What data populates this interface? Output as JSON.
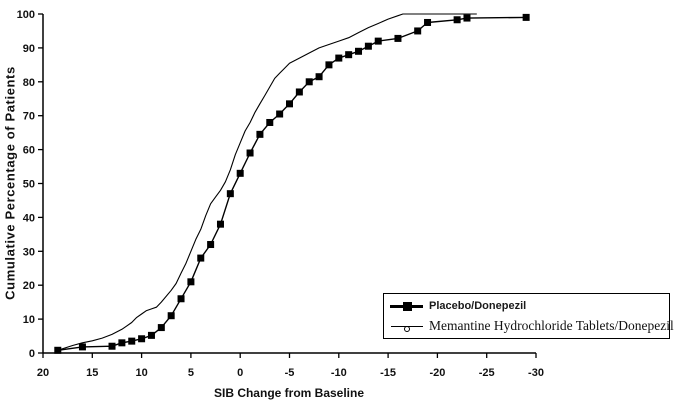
{
  "colors": {
    "background": "#ffffff",
    "line": "#000000",
    "text": "#111111",
    "legend_border": "#000000"
  },
  "legend": {
    "entries": [
      "Placebo/Donepezil",
      "Memantine Hydrochloride Tablets/Donepezil"
    ],
    "position": "inside-bottom-right"
  },
  "chart_data": {
    "type": "line",
    "title": "",
    "xlabel": "SIB Change from Baseline",
    "ylabel": "Cumulative Percentage of Patients",
    "x_axis": {
      "ticks": [
        20,
        15,
        10,
        5,
        0,
        -5,
        -10,
        -15,
        -20,
        -25,
        -30
      ],
      "range": [
        20,
        -30
      ],
      "reversed": true
    },
    "y_axis": {
      "ticks": [
        0,
        10,
        20,
        30,
        40,
        50,
        60,
        70,
        80,
        90,
        100
      ],
      "range": [
        0,
        100
      ]
    },
    "grid": false,
    "series": [
      {
        "name": "Placebo/Donepezil",
        "marker": "filled-square",
        "line_style": "solid",
        "points": [
          [
            18.5,
            0.8
          ],
          [
            16,
            1.8
          ],
          [
            13,
            2
          ],
          [
            12,
            3
          ],
          [
            11,
            3.5
          ],
          [
            10,
            4.2
          ],
          [
            9,
            5.2
          ],
          [
            8,
            7.5
          ],
          [
            7,
            11
          ],
          [
            6,
            16
          ],
          [
            5,
            21
          ],
          [
            4,
            28
          ],
          [
            3,
            32
          ],
          [
            2,
            38
          ],
          [
            1,
            47
          ],
          [
            0,
            53
          ],
          [
            -1,
            59
          ],
          [
            -2,
            64.5
          ],
          [
            -3,
            68
          ],
          [
            -4,
            70.5
          ],
          [
            -5,
            73.5
          ],
          [
            -6,
            77
          ],
          [
            -7,
            80
          ],
          [
            -8,
            81.5
          ],
          [
            -9,
            85
          ],
          [
            -10,
            87
          ],
          [
            -11,
            88
          ],
          [
            -12,
            89
          ],
          [
            -13,
            90.5
          ],
          [
            -14,
            92
          ],
          [
            -16,
            92.8
          ],
          [
            -18,
            95
          ],
          [
            -19,
            97.5
          ],
          [
            -22,
            98.3
          ],
          [
            -23,
            98.8
          ],
          [
            -29,
            99
          ]
        ]
      },
      {
        "name": "Memantine Hydrochloride Tablets/Donepezil",
        "marker": "open-circle",
        "line_style": "solid",
        "points": [
          [
            18.5,
            0.8
          ],
          [
            17,
            2.2
          ],
          [
            16,
            3
          ],
          [
            15,
            3.6
          ],
          [
            14,
            4.4
          ],
          [
            13,
            5.5
          ],
          [
            12,
            7
          ],
          [
            11.5,
            8
          ],
          [
            11,
            9
          ],
          [
            10.5,
            10.5
          ],
          [
            10,
            11.5
          ],
          [
            9.5,
            12.5
          ],
          [
            9,
            13
          ],
          [
            8.5,
            13.5
          ],
          [
            8,
            15
          ],
          [
            7,
            18.5
          ],
          [
            6.5,
            20.5
          ],
          [
            6,
            23.5
          ],
          [
            5.5,
            26.5
          ],
          [
            5,
            30
          ],
          [
            4.5,
            33.5
          ],
          [
            4,
            36.5
          ],
          [
            3.5,
            40.5
          ],
          [
            3,
            44
          ],
          [
            2.5,
            46
          ],
          [
            2,
            48
          ],
          [
            1.5,
            50.5
          ],
          [
            1,
            54
          ],
          [
            0.5,
            58.5
          ],
          [
            0,
            62
          ],
          [
            -0.5,
            65.5
          ],
          [
            -1,
            68
          ],
          [
            -1.5,
            71
          ],
          [
            -2,
            73.5
          ],
          [
            -2.5,
            76
          ],
          [
            -3,
            78.5
          ],
          [
            -3.5,
            81
          ],
          [
            -4,
            82.5
          ],
          [
            -4.5,
            84
          ],
          [
            -5,
            85.5
          ],
          [
            -6,
            87
          ],
          [
            -7,
            88.5
          ],
          [
            -8,
            90
          ],
          [
            -9,
            91
          ],
          [
            -10,
            92
          ],
          [
            -11,
            93
          ],
          [
            -12,
            94.5
          ],
          [
            -13,
            96
          ],
          [
            -14,
            97.2
          ],
          [
            -15,
            98.5
          ],
          [
            -16,
            99.5
          ],
          [
            -16.5,
            100
          ],
          [
            -24,
            100
          ]
        ]
      }
    ]
  }
}
